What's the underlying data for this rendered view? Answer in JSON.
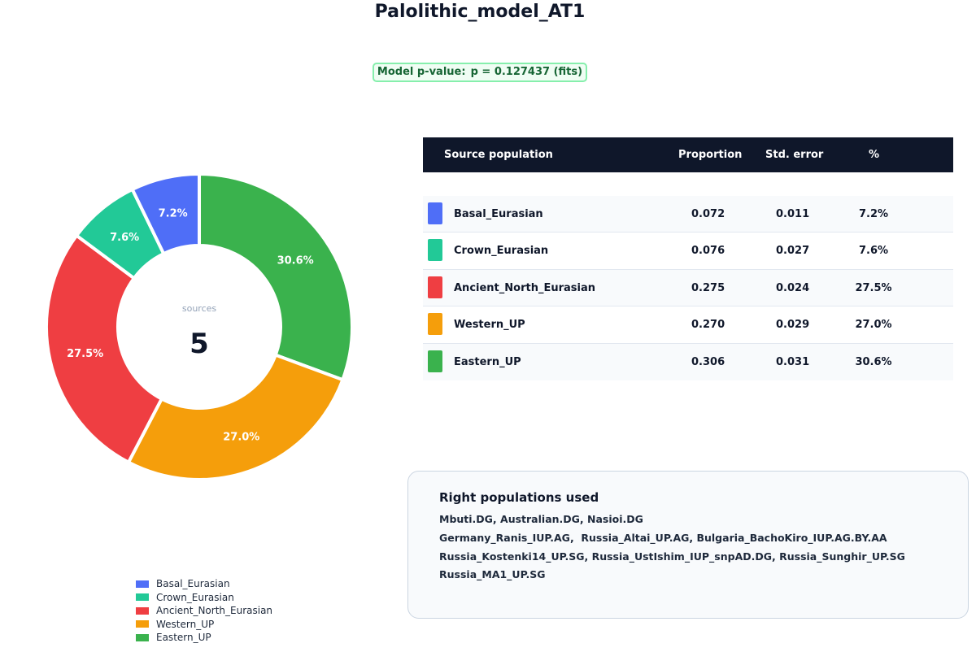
{
  "title": "Palolithic_model_AT1",
  "pvalue": {
    "label": "Model p-value:",
    "text": "p = 0.127437 (fits)"
  },
  "chart_data": {
    "type": "pie",
    "variant": "donut",
    "center_caption": "sources",
    "center_value": "5",
    "categories": [
      "Basal_Eurasian",
      "Crown_Eurasian",
      "Ancient_North_Eurasian",
      "Western_UP",
      "Eastern_UP"
    ],
    "values": [
      7.2,
      7.6,
      27.5,
      27.0,
      30.6
    ],
    "slice_labels": [
      "7.2%",
      "7.6%",
      "27.5%",
      "27.0%",
      "30.6%"
    ],
    "colors": [
      "#4f6ef7",
      "#22c997",
      "#ef3e42",
      "#f59e0b",
      "#3ab24d"
    ],
    "legend_position": "bottom-left"
  },
  "table": {
    "headers": [
      "Source population",
      "Proportion",
      "Std. error",
      "%"
    ],
    "rows": [
      {
        "name": "Basal_Eurasian",
        "proportion": "0.072",
        "std_error": "0.011",
        "percent": "7.2%",
        "color": "#4f6ef7"
      },
      {
        "name": "Crown_Eurasian",
        "proportion": "0.076",
        "std_error": "0.027",
        "percent": "7.6%",
        "color": "#22c997"
      },
      {
        "name": "Ancient_North_Eurasian",
        "proportion": "0.275",
        "std_error": "0.024",
        "percent": "27.5%",
        "color": "#ef3e42"
      },
      {
        "name": "Western_UP",
        "proportion": "0.270",
        "std_error": "0.029",
        "percent": "27.0%",
        "color": "#f59e0b"
      },
      {
        "name": "Eastern_UP",
        "proportion": "0.306",
        "std_error": "0.031",
        "percent": "30.6%",
        "color": "#3ab24d"
      }
    ]
  },
  "right_populations": {
    "title": "Right populations used",
    "lines": [
      "Mbuti.DG, Australian.DG, Nasioi.DG",
      "Germany_Ranis_IUP.AG,  Russia_Altai_UP.AG, Bulgaria_BachoKiro_IUP.AG.BY.AA",
      "Russia_Kostenki14_UP.SG, Russia_UstIshim_IUP_snpAD.DG, Russia_Sunghir_UP.SG",
      "Russia_MA1_UP.SG"
    ]
  }
}
